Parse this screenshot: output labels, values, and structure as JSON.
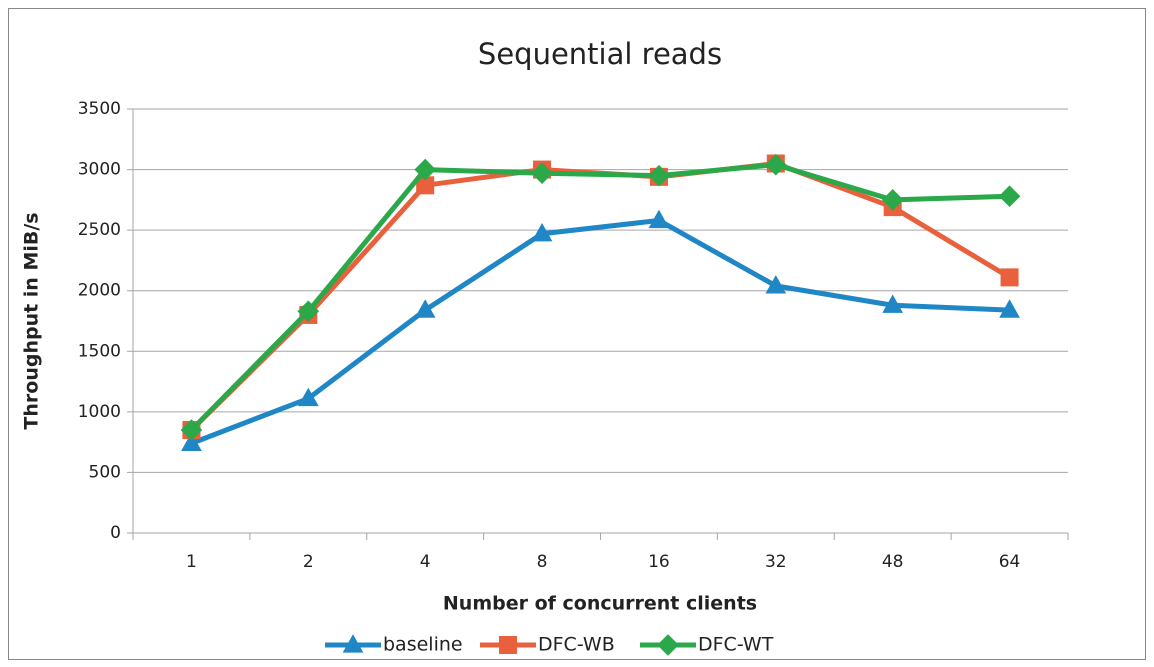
{
  "chart_data": {
    "type": "line",
    "title": "Sequential reads",
    "x_label": "Number of concurrent clients",
    "y_label": "Throughput in MiB/s",
    "categories": [
      "1",
      "2",
      "4",
      "8",
      "16",
      "32",
      "48",
      "64"
    ],
    "series": [
      {
        "name": "baseline",
        "color": "#1f87c6",
        "marker": "triangle",
        "values": [
          740,
          1110,
          1840,
          2470,
          2580,
          2040,
          1880,
          1840
        ]
      },
      {
        "name": "DFC-WB",
        "color": "#e8603c",
        "marker": "square",
        "values": [
          850,
          1800,
          2870,
          3000,
          2940,
          3050,
          2690,
          2110
        ]
      },
      {
        "name": "DFC-WT",
        "color": "#2aa84a",
        "marker": "diamond",
        "values": [
          850,
          1830,
          3000,
          2970,
          2950,
          3040,
          2750,
          2780
        ]
      }
    ],
    "ylim": [
      0,
      3500
    ],
    "yticks": [
      0,
      500,
      1000,
      1500,
      2000,
      2500,
      3000,
      3500
    ],
    "grid": true,
    "legend": "bottom"
  }
}
